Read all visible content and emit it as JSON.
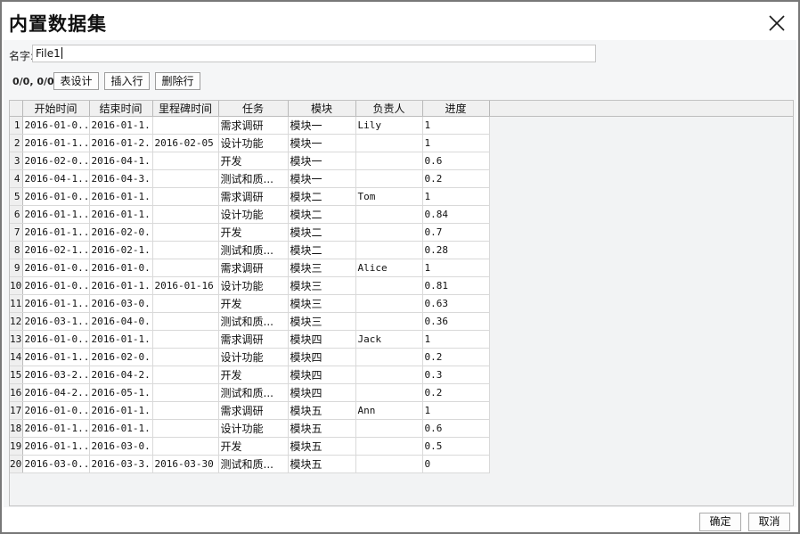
{
  "dialog": {
    "title": "内置数据集"
  },
  "name_field": {
    "label": "名字:",
    "value": "File1"
  },
  "toolbar": {
    "counter": "0/0, 0/0",
    "table_design": "表设计",
    "insert_row": "插入行",
    "delete_row": "删除行"
  },
  "table": {
    "columns": [
      "开始时间",
      "结束时间",
      "里程碑时间",
      "任务",
      "模块",
      "负责人",
      "进度"
    ],
    "rows": [
      [
        "1",
        "2016-01-0...",
        "2016-01-1...",
        "",
        "需求调研",
        "模块一",
        "Lily",
        "1"
      ],
      [
        "2",
        "2016-01-1...",
        "2016-01-2...",
        "2016-02-05",
        "设计功能",
        "模块一",
        "",
        "1"
      ],
      [
        "3",
        "2016-02-0...",
        "2016-04-1...",
        "",
        "开发",
        "模块一",
        "",
        "0.6"
      ],
      [
        "4",
        "2016-04-1...",
        "2016-04-3...",
        "",
        "测试和质...",
        "模块一",
        "",
        "0.2"
      ],
      [
        "5",
        "2016-01-0...",
        "2016-01-1...",
        "",
        "需求调研",
        "模块二",
        "Tom",
        "1"
      ],
      [
        "6",
        "2016-01-1...",
        "2016-01-1...",
        "",
        "设计功能",
        "模块二",
        "",
        "0.84"
      ],
      [
        "7",
        "2016-01-1...",
        "2016-02-0...",
        "",
        "开发",
        "模块二",
        "",
        "0.7"
      ],
      [
        "8",
        "2016-02-1...",
        "2016-02-1...",
        "",
        "测试和质...",
        "模块二",
        "",
        "0.28"
      ],
      [
        "9",
        "2016-01-0...",
        "2016-01-0...",
        "",
        "需求调研",
        "模块三",
        "Alice",
        "1"
      ],
      [
        "10",
        "2016-01-0...",
        "2016-01-1...",
        "2016-01-16",
        "设计功能",
        "模块三",
        "",
        "0.81"
      ],
      [
        "11",
        "2016-01-1...",
        "2016-03-0...",
        "",
        "开发",
        "模块三",
        "",
        "0.63"
      ],
      [
        "12",
        "2016-03-1...",
        "2016-04-0...",
        "",
        "测试和质...",
        "模块三",
        "",
        "0.36"
      ],
      [
        "13",
        "2016-01-0...",
        "2016-01-1...",
        "",
        "需求调研",
        "模块四",
        "Jack",
        "1"
      ],
      [
        "14",
        "2016-01-1...",
        "2016-02-0...",
        "",
        "设计功能",
        "模块四",
        "",
        "0.2"
      ],
      [
        "15",
        "2016-03-2...",
        "2016-04-2...",
        "",
        "开发",
        "模块四",
        "",
        "0.3"
      ],
      [
        "16",
        "2016-04-2...",
        "2016-05-1...",
        "",
        "测试和质...",
        "模块四",
        "",
        "0.2"
      ],
      [
        "17",
        "2016-01-0...",
        "2016-01-1...",
        "",
        "需求调研",
        "模块五",
        "Ann",
        "1"
      ],
      [
        "18",
        "2016-01-1...",
        "2016-01-1...",
        "",
        "设计功能",
        "模块五",
        "",
        "0.6"
      ],
      [
        "19",
        "2016-01-1...",
        "2016-03-0...",
        "",
        "开发",
        "模块五",
        "",
        "0.5"
      ],
      [
        "20",
        "2016-03-0...",
        "2016-03-3...",
        "2016-03-30",
        "测试和质...",
        "模块五",
        "",
        "0"
      ]
    ]
  },
  "footer": {
    "ok": "确定",
    "cancel": "取消"
  },
  "colors": {
    "header_bg": "#f0f0f0",
    "grid_bg": "#f2f3f4",
    "dialog_border": "#787878"
  }
}
